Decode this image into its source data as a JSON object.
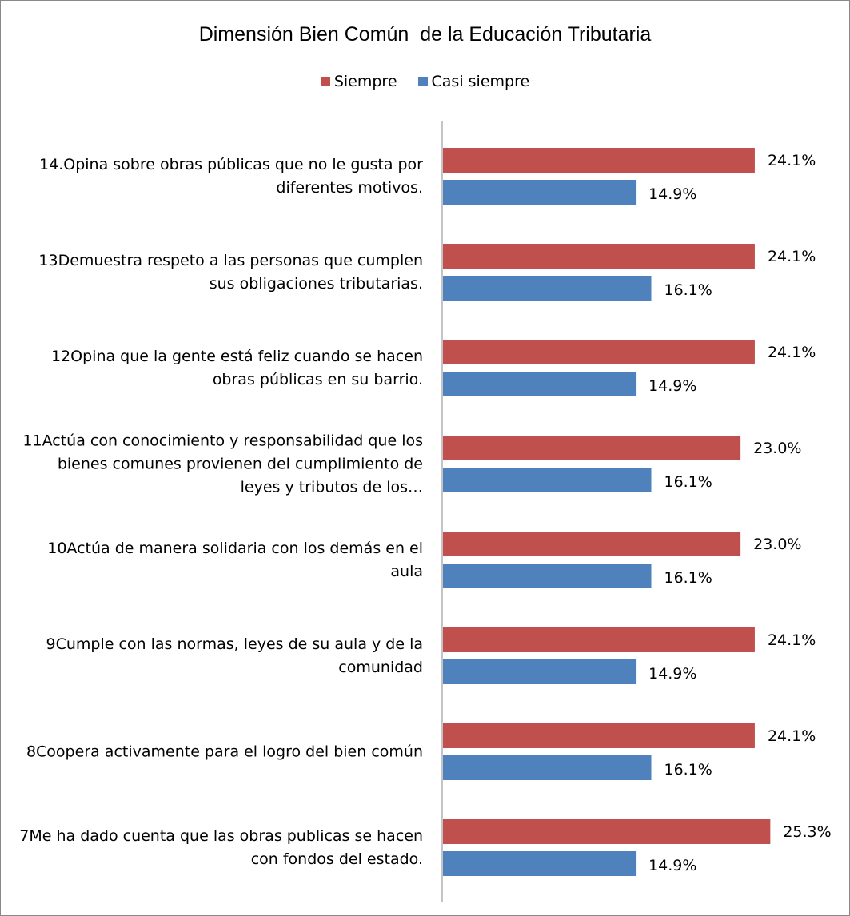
{
  "chart_data": {
    "type": "hbar",
    "title": "Dimensión Bien Común  de la Educación Tributaria",
    "categories": [
      "14.Opina sobre obras públicas que no le gusta por diferentes motivos.",
      "13Demuestra respeto a las personas que cumplen sus obligaciones tributarias.",
      "12Opina que la gente está feliz cuando se hacen obras públicas en su barrio.",
      "11Actúa con conocimiento y responsabilidad que los bienes comunes provienen del cumplimiento de leyes y tributos de los…",
      "10Actúa de manera solidaria con los demás en el aula",
      "9Cumple con las normas, leyes de su aula y de la comunidad",
      "8Coopera activamente para el logro del bien común",
      "7Me ha dado cuenta que las obras publicas se hacen con fondos del estado."
    ],
    "series": [
      {
        "name": "Siempre",
        "color": "#c0504d",
        "values": [
          24.1,
          24.1,
          24.1,
          23.0,
          23.0,
          24.1,
          24.1,
          25.3
        ],
        "value_labels": [
          "24.1%",
          "24.1%",
          "24.1%",
          "23.0%",
          "23.0%",
          "24.1%",
          "24.1%",
          "25.3%"
        ]
      },
      {
        "name": "Casi siempre",
        "color": "#4f81bd",
        "values": [
          14.9,
          16.1,
          14.9,
          16.1,
          16.1,
          14.9,
          16.1,
          14.9
        ],
        "value_labels": [
          "14.9%",
          "16.1%",
          "14.9%",
          "16.1%",
          "16.1%",
          "14.9%",
          "16.1%",
          "14.9%"
        ]
      }
    ],
    "legend": "top"
  }
}
